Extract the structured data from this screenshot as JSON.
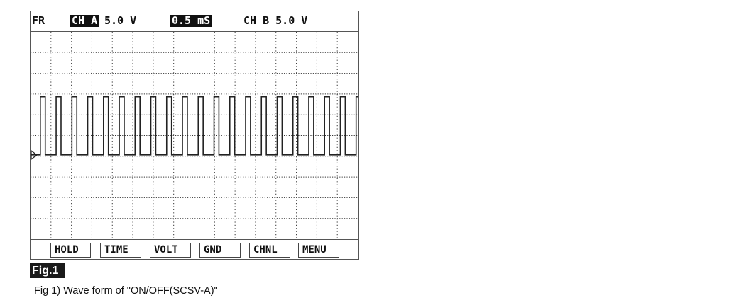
{
  "header": {
    "mode": "FR",
    "ch_a_label": "CH A",
    "ch_a_scale": "5.0 V",
    "timebase": "0.5 mS",
    "ch_b": "CH B 5.0 V"
  },
  "buttons": [
    "HOLD",
    "TIME",
    "VOLT",
    "GND",
    "CHNL",
    "MENU"
  ],
  "figure_label": "Fig.1",
  "caption": "Fig 1) Wave form of \"ON/OFF(SCSV-A)\"",
  "chart_data": {
    "type": "line",
    "grid": true,
    "x_unit": "ms",
    "y_unit": "V",
    "x_per_div": 0.5,
    "y_per_div": 5.0,
    "x_divisions": 16,
    "y_divisions": 10,
    "xlim": [
      0,
      8
    ],
    "y_ground_div_from_top": 6,
    "signal": {
      "shape": "square-pulse",
      "low_v": 0,
      "high_v": 14,
      "first_rise_ms": 0.24,
      "period_ms": 0.386,
      "pulse_width_ms": 0.12,
      "pulse_count": 21
    },
    "colors": {
      "trace": "#222222",
      "grid": "#333333"
    }
  }
}
